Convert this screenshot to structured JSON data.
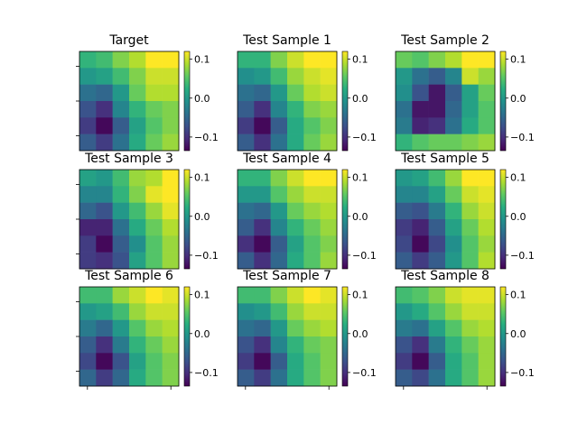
{
  "chart_data": {
    "type": "heatmap",
    "colormap": "viridis",
    "colorbar": {
      "vmin": -0.135,
      "vmax": 0.12,
      "ticks": [
        0.1,
        0.0,
        -0.1
      ],
      "tick_labels": [
        "0.1",
        "0.0",
        "−0.1"
      ]
    },
    "panels": [
      {
        "title": "Target",
        "values": [
          [
            0.03,
            0.04,
            0.07,
            0.09,
            0.12,
            0.12
          ],
          [
            0.0,
            0.01,
            0.04,
            0.07,
            0.1,
            0.1
          ],
          [
            -0.04,
            -0.05,
            0.0,
            0.06,
            0.09,
            0.09
          ],
          [
            -0.07,
            -0.1,
            -0.02,
            0.03,
            0.06,
            0.07
          ],
          [
            -0.09,
            -0.13,
            -0.06,
            0.01,
            0.05,
            0.07
          ],
          [
            -0.06,
            -0.09,
            -0.04,
            0.02,
            0.06,
            0.08
          ]
        ]
      },
      {
        "title": "Test Sample 1",
        "values": [
          [
            0.03,
            0.03,
            0.07,
            0.1,
            0.12,
            0.12
          ],
          [
            -0.01,
            0.0,
            0.04,
            0.08,
            0.1,
            0.11
          ],
          [
            -0.04,
            -0.05,
            0.0,
            0.06,
            0.09,
            0.1
          ],
          [
            -0.06,
            -0.1,
            -0.02,
            0.03,
            0.07,
            0.08
          ],
          [
            -0.09,
            -0.13,
            -0.06,
            0.02,
            0.05,
            0.07
          ],
          [
            -0.06,
            -0.1,
            -0.04,
            0.02,
            0.06,
            0.08
          ]
        ]
      },
      {
        "title": "Test Sample 2",
        "values": [
          [
            0.06,
            0.05,
            0.07,
            0.09,
            0.12,
            0.12
          ],
          [
            0.0,
            -0.04,
            -0.06,
            -0.02,
            0.1,
            0.08
          ],
          [
            -0.01,
            -0.07,
            -0.12,
            -0.06,
            0.01,
            0.06
          ],
          [
            -0.04,
            -0.12,
            -0.12,
            -0.05,
            0.01,
            0.05
          ],
          [
            -0.03,
            -0.11,
            -0.1,
            -0.04,
            0.02,
            0.05
          ],
          [
            0.03,
            0.05,
            0.06,
            0.06,
            0.07,
            0.08
          ]
        ]
      },
      {
        "title": "Test Sample 3",
        "values": [
          [
            0.01,
            0.0,
            0.04,
            0.08,
            0.09,
            0.12
          ],
          [
            -0.02,
            -0.02,
            0.03,
            0.07,
            0.11,
            0.12
          ],
          [
            -0.05,
            -0.07,
            0.0,
            0.04,
            0.08,
            0.11
          ],
          [
            -0.11,
            -0.11,
            -0.04,
            0.02,
            0.06,
            0.09
          ],
          [
            -0.09,
            -0.13,
            -0.06,
            -0.01,
            0.05,
            0.08
          ],
          [
            -0.09,
            -0.1,
            -0.07,
            0.01,
            0.05,
            0.08
          ]
        ]
      },
      {
        "title": "Test Sample 4",
        "values": [
          [
            0.03,
            0.03,
            0.07,
            0.1,
            0.12,
            0.12
          ],
          [
            0.0,
            0.0,
            0.05,
            0.08,
            0.1,
            0.1
          ],
          [
            -0.04,
            -0.05,
            0.0,
            0.06,
            0.08,
            0.09
          ],
          [
            -0.06,
            -0.1,
            -0.02,
            0.03,
            0.06,
            0.08
          ],
          [
            -0.1,
            -0.13,
            -0.06,
            0.01,
            0.05,
            0.07
          ],
          [
            -0.06,
            -0.1,
            -0.05,
            0.02,
            0.05,
            0.08
          ]
        ]
      },
      {
        "title": "Test Sample 5",
        "values": [
          [
            0.0,
            0.01,
            0.04,
            0.08,
            0.12,
            0.12
          ],
          [
            -0.02,
            -0.02,
            0.01,
            0.06,
            0.1,
            0.11
          ],
          [
            -0.06,
            -0.07,
            -0.03,
            0.03,
            0.08,
            0.1
          ],
          [
            -0.09,
            -0.11,
            -0.06,
            0.01,
            0.06,
            0.09
          ],
          [
            -0.08,
            -0.13,
            -0.08,
            -0.01,
            0.05,
            0.08
          ],
          [
            -0.06,
            -0.09,
            -0.06,
            0.0,
            0.05,
            0.09
          ]
        ]
      },
      {
        "title": "Test Sample 6",
        "values": [
          [
            0.04,
            0.04,
            0.08,
            0.1,
            0.12,
            0.11
          ],
          [
            0.0,
            0.01,
            0.04,
            0.08,
            0.1,
            0.1
          ],
          [
            -0.03,
            -0.05,
            0.0,
            0.05,
            0.08,
            0.09
          ],
          [
            -0.06,
            -0.1,
            -0.03,
            0.03,
            0.06,
            0.08
          ],
          [
            -0.08,
            -0.13,
            -0.07,
            0.01,
            0.05,
            0.07
          ],
          [
            -0.05,
            -0.09,
            -0.05,
            0.02,
            0.05,
            0.07
          ]
        ]
      },
      {
        "title": "Test Sample 7",
        "values": [
          [
            0.04,
            0.04,
            0.07,
            0.1,
            0.12,
            0.11
          ],
          [
            -0.01,
            0.0,
            0.04,
            0.08,
            0.1,
            0.1
          ],
          [
            -0.04,
            -0.05,
            0.0,
            0.06,
            0.08,
            0.09
          ],
          [
            -0.07,
            -0.1,
            -0.02,
            0.03,
            0.06,
            0.07
          ],
          [
            -0.09,
            -0.13,
            -0.06,
            0.02,
            0.05,
            0.07
          ],
          [
            -0.06,
            -0.09,
            -0.04,
            0.02,
            0.05,
            0.07
          ]
        ]
      },
      {
        "title": "Test Sample 8",
        "values": [
          [
            0.04,
            0.05,
            0.07,
            0.1,
            0.11,
            0.11
          ],
          [
            0.0,
            0.02,
            0.05,
            0.08,
            0.1,
            0.1
          ],
          [
            -0.03,
            -0.04,
            0.01,
            0.05,
            0.08,
            0.09
          ],
          [
            -0.07,
            -0.1,
            -0.03,
            0.03,
            0.06,
            0.08
          ],
          [
            -0.09,
            -0.13,
            -0.06,
            0.02,
            0.05,
            0.08
          ],
          [
            -0.06,
            -0.08,
            -0.04,
            0.02,
            0.05,
            0.08
          ]
        ]
      }
    ]
  }
}
